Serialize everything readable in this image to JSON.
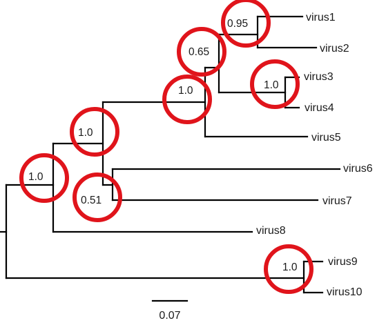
{
  "figure": "phylogenetic tree",
  "tips": [
    {
      "id": "t1",
      "label": "virus1"
    },
    {
      "id": "t2",
      "label": "virus2"
    },
    {
      "id": "t3",
      "label": "virus3"
    },
    {
      "id": "t4",
      "label": "virus4"
    },
    {
      "id": "t5",
      "label": "virus5"
    },
    {
      "id": "t6",
      "label": "virus6"
    },
    {
      "id": "t7",
      "label": "virus7"
    },
    {
      "id": "t8",
      "label": "virus8"
    },
    {
      "id": "t9",
      "label": "virus9"
    },
    {
      "id": "t10",
      "label": "virus10"
    }
  ],
  "support_values": [
    {
      "id": "s1",
      "node": "virus1+virus2",
      "value": "0.95",
      "circled": true
    },
    {
      "id": "s2",
      "node": "virus1..virus4",
      "value": "0.65",
      "circled": true
    },
    {
      "id": "s3",
      "node": "virus3+virus4",
      "value": "1.0",
      "circled": true
    },
    {
      "id": "s4",
      "node": "virus1..virus5",
      "value": "1.0",
      "circled": true
    },
    {
      "id": "s5",
      "node": "virus1..virus7",
      "value": "1.0",
      "circled": true
    },
    {
      "id": "s6",
      "node": "virus1..virus8",
      "value": "1.0",
      "circled": true
    },
    {
      "id": "s7",
      "node": "virus6+virus7",
      "value": "0.51",
      "circled": true
    },
    {
      "id": "s8",
      "node": "virus9+virus10",
      "value": "1.0",
      "circled": true
    }
  ],
  "scale_bar": {
    "label": "0.07"
  },
  "colors": {
    "branch": "#000000",
    "highlight": "#e0141b",
    "text": "#1a1a1a"
  }
}
